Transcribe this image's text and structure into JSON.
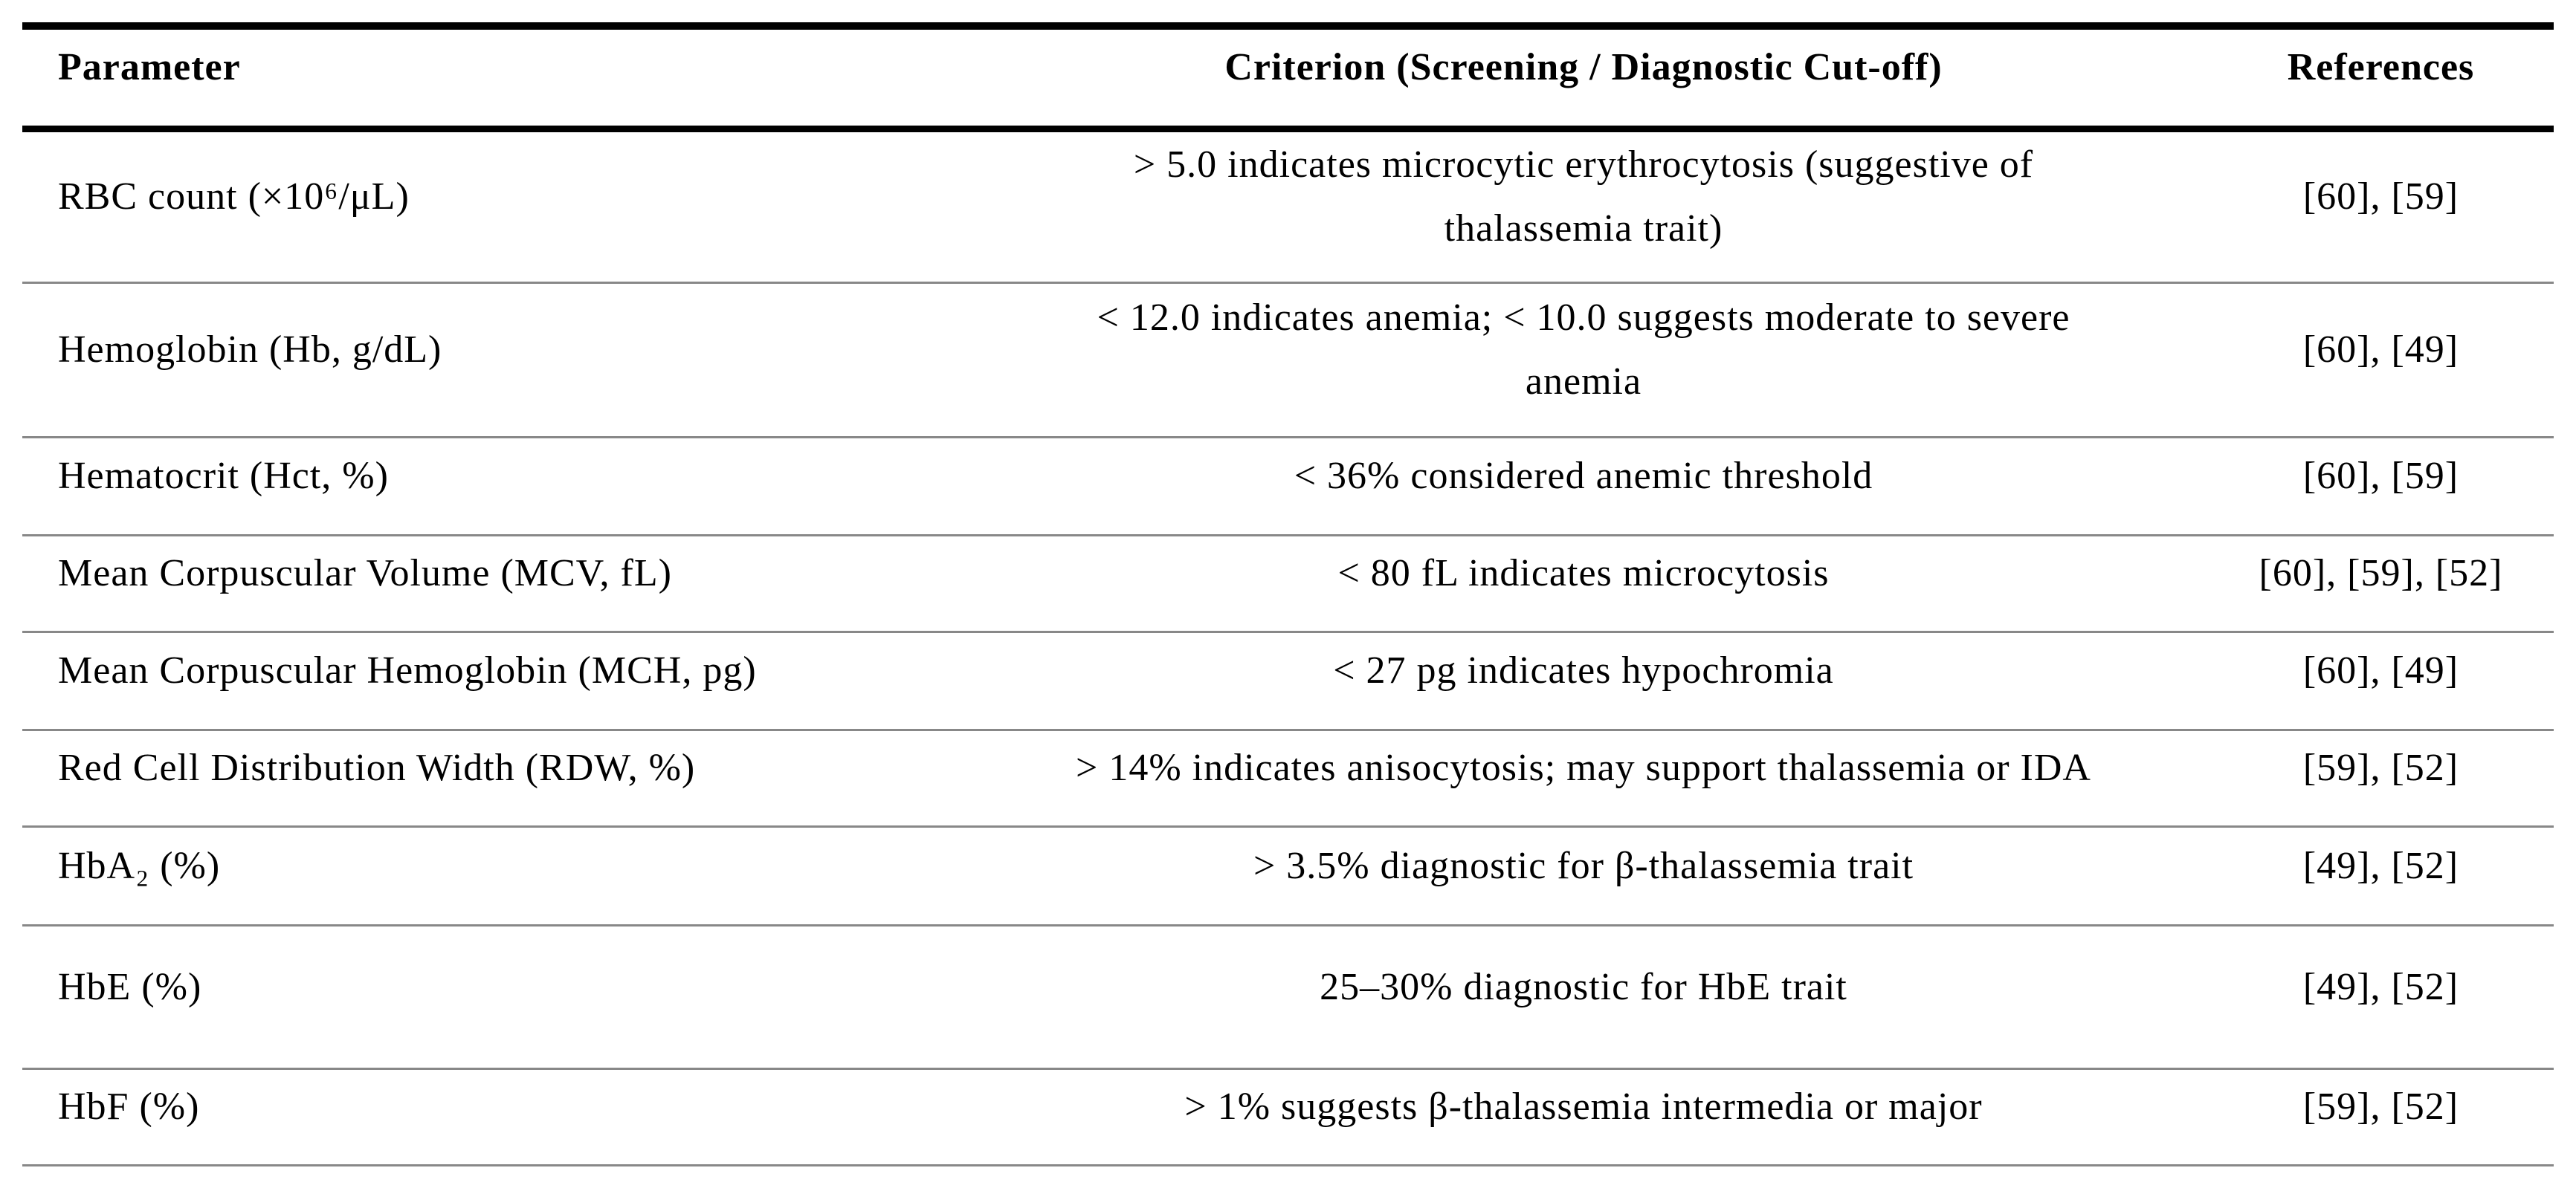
{
  "table": {
    "columns": {
      "parameter": "Parameter",
      "criterion": "Criterion (Screening / Diagnostic Cut-off)",
      "references": "References"
    },
    "rows": [
      {
        "parameter": "RBC count (×10⁶/μL)",
        "criterion": "> 5.0 indicates microcytic erythrocytosis (suggestive of\nthalassemia trait)",
        "references": "[60], [59]"
      },
      {
        "parameter": "Hemoglobin (Hb, g/dL)",
        "criterion": "< 12.0 indicates anemia; < 10.0 suggests moderate to severe\nanemia",
        "references": "[60], [49]"
      },
      {
        "parameter": "Hematocrit (Hct, %)",
        "criterion": "< 36% considered anemic threshold",
        "references": "[60], [59]"
      },
      {
        "parameter": "Mean Corpuscular Volume (MCV, fL)",
        "criterion": "< 80 fL indicates microcytosis",
        "references": "[60], [59], [52]"
      },
      {
        "parameter": "Mean Corpuscular Hemoglobin (MCH, pg)",
        "criterion": "< 27 pg indicates hypochromia",
        "references": "[60], [49]"
      },
      {
        "parameter": "Red Cell Distribution Width (RDW, %)",
        "criterion": "> 14% indicates anisocytosis; may support thalassemia or IDA",
        "references": "[59], [52]"
      },
      {
        "parameter": "HbA₂ (%)",
        "criterion": "> 3.5% diagnostic for β-thalassemia trait",
        "references": "[49], [52]"
      },
      {
        "parameter": "HbE (%)",
        "criterion": "25–30% diagnostic for HbE trait",
        "references": "[49], [52]"
      },
      {
        "parameter": "HbF (%)",
        "criterion": "> 1% suggests β-thalassemia intermedia or major",
        "references": "[59], [52]"
      }
    ]
  },
  "colors": {
    "text": "#000000",
    "heavy_rule": "#000000",
    "light_rule": "#888888",
    "background": "#ffffff"
  }
}
